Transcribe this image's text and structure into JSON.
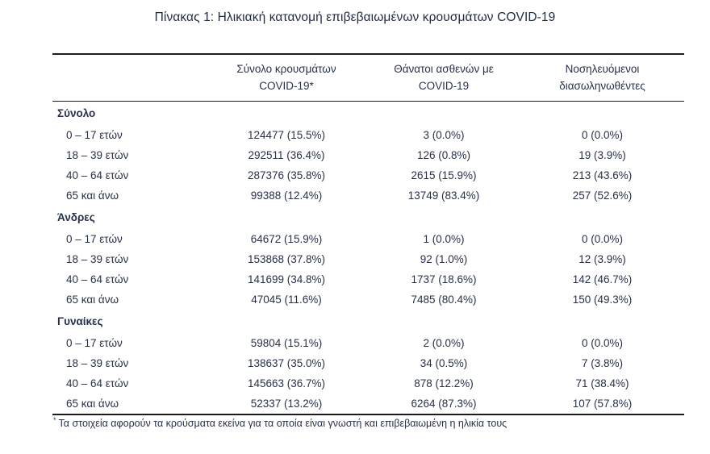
{
  "title": "Πίνακας 1: Ηλικιακή κατανομή επιβεβαιωμένων κρουσμάτων COVID-19",
  "table": {
    "columns": [
      {
        "line1": "Σύνολο κρουσμάτων",
        "line2": "COVID-19*"
      },
      {
        "line1": "Θάνατοι ασθενών με",
        "line2": "COVID-19"
      },
      {
        "line1": "Νοσηλευόμενοι",
        "line2": "διασωληνωθέντες"
      }
    ],
    "sections": [
      {
        "label": "Σύνολο",
        "rows": [
          {
            "label": "0 – 17 ετών",
            "cases": "124477 (15.5%)",
            "deaths": "3 (0.0%)",
            "intubated": "0 (0.0%)"
          },
          {
            "label": "18 – 39 ετών",
            "cases": "292511 (36.4%)",
            "deaths": "126 (0.8%)",
            "intubated": "19 (3.9%)"
          },
          {
            "label": "40 – 64 ετών",
            "cases": "287376 (35.8%)",
            "deaths": "2615 (15.9%)",
            "intubated": "213 (43.6%)"
          },
          {
            "label": "65 και άνω",
            "cases": "99388 (12.4%)",
            "deaths": "13749 (83.4%)",
            "intubated": "257 (52.6%)"
          }
        ]
      },
      {
        "label": "Άνδρες",
        "rows": [
          {
            "label": "0 – 17 ετών",
            "cases": "64672 (15.9%)",
            "deaths": "1 (0.0%)",
            "intubated": "0 (0.0%)"
          },
          {
            "label": "18 – 39 ετών",
            "cases": "153868 (37.8%)",
            "deaths": "92 (1.0%)",
            "intubated": "12 (3.9%)"
          },
          {
            "label": "40 – 64 ετών",
            "cases": "141699 (34.8%)",
            "deaths": "1737 (18.6%)",
            "intubated": "142 (46.7%)"
          },
          {
            "label": "65 και άνω",
            "cases": "47045 (11.6%)",
            "deaths": "7485 (80.4%)",
            "intubated": "150 (49.3%)"
          }
        ]
      },
      {
        "label": "Γυναίκες",
        "rows": [
          {
            "label": "0 – 17 ετών",
            "cases": "59804 (15.1%)",
            "deaths": "2 (0.0%)",
            "intubated": "0 (0.0%)"
          },
          {
            "label": "18 – 39 ετών",
            "cases": "138637 (35.0%)",
            "deaths": "34 (0.5%)",
            "intubated": "7 (3.8%)"
          },
          {
            "label": "40 – 64 ετών",
            "cases": "145663 (36.7%)",
            "deaths": "878 (12.2%)",
            "intubated": "71 (38.4%)"
          },
          {
            "label": "65 και άνω",
            "cases": "52337 (13.2%)",
            "deaths": "6264 (87.3%)",
            "intubated": "107 (57.8%)"
          }
        ]
      }
    ],
    "footnote_marker": "*",
    "footnote": "Τα στοιχεία αφορούν τα κρούσματα εκείνα για τα οποία είναι γνωστή και επιβεβαιωμένη η ηλικία τους"
  }
}
